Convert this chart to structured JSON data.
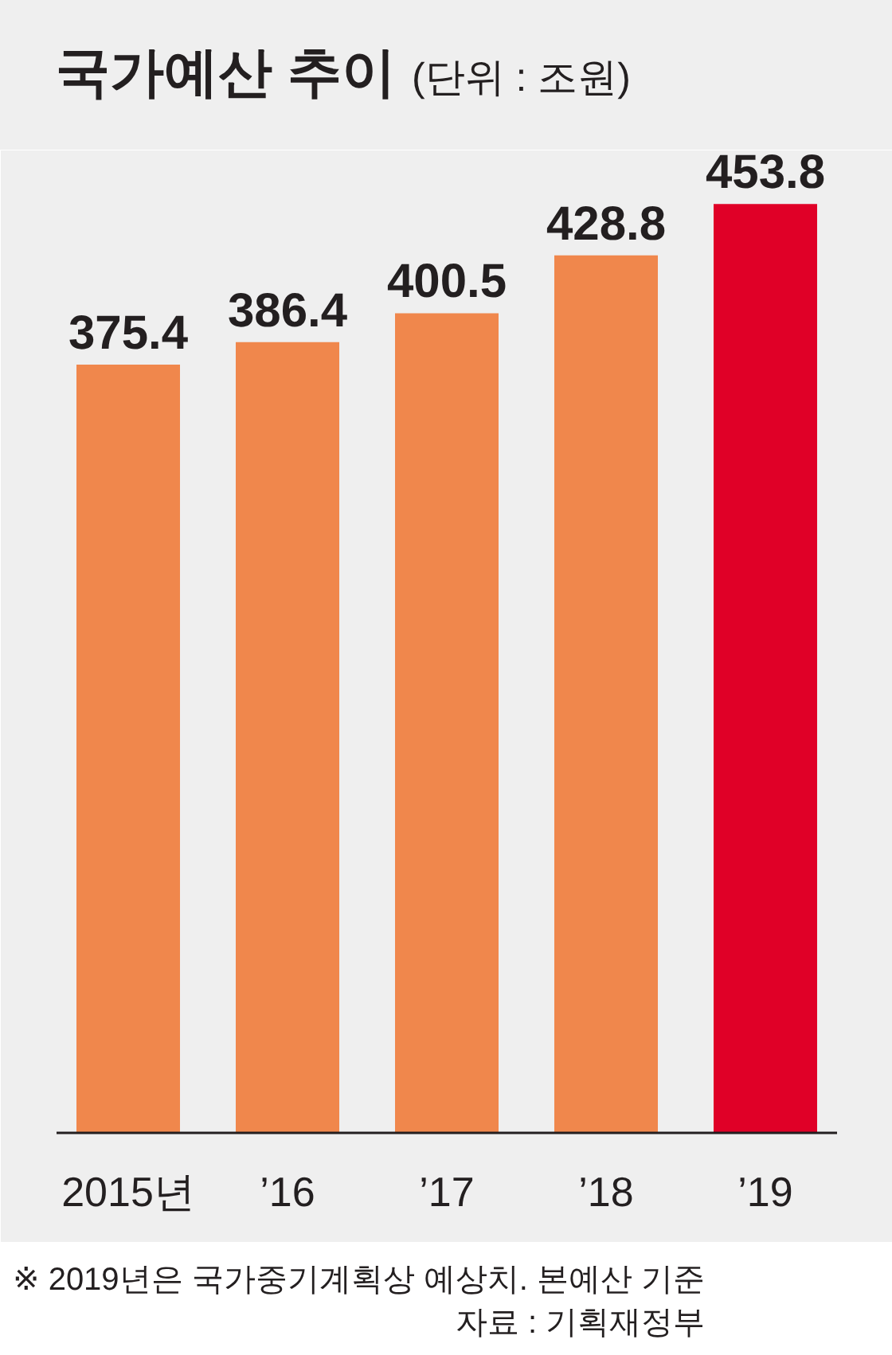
{
  "chart_data": {
    "type": "bar",
    "title": "국가예산 추이",
    "subtitle": "(단위 : 조원)",
    "categories": [
      "2015년",
      "’16",
      "’17",
      "’18",
      "’19"
    ],
    "values": [
      375.4,
      386.4,
      400.5,
      428.8,
      453.8
    ],
    "colors": [
      "#f0874c",
      "#f0874c",
      "#f0874c",
      "#f0874c",
      "#e00027"
    ],
    "ylim": [
      0,
      480
    ],
    "data_labels": true,
    "annotations": [
      "※ 2019년은 국가중기계획상 예상치. 본예산 기준",
      "자료 : 기획재정부"
    ]
  }
}
